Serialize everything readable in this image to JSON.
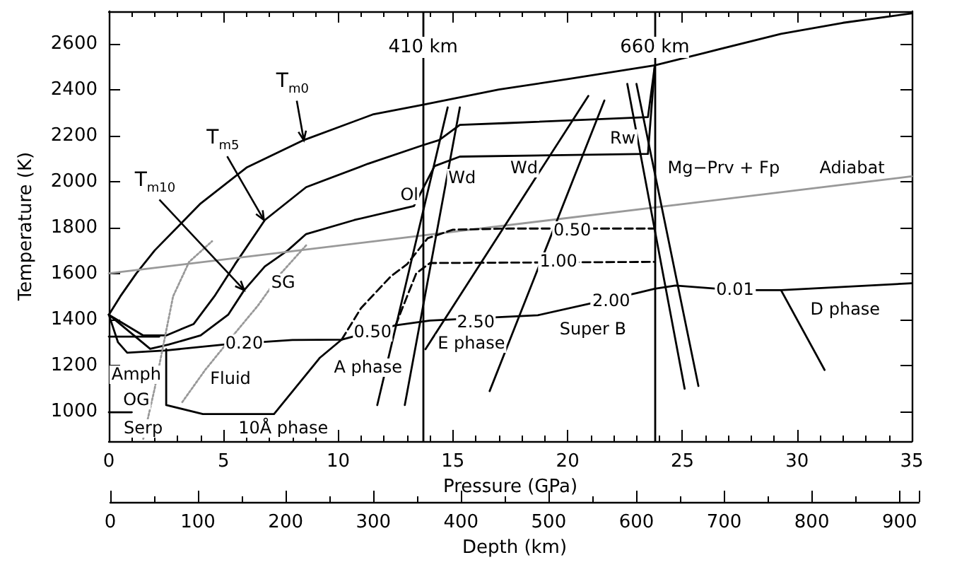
{
  "chart_data": {
    "type": "line",
    "xlabel": "Pressure (GPa)",
    "ylabel": "Temperature (K)",
    "x2label": "Depth (km)",
    "xlim": [
      0,
      35
    ],
    "xticks": [
      0,
      5,
      10,
      15,
      20,
      25,
      30,
      35
    ],
    "ylim": [
      870,
      2740
    ],
    "yticks": [
      1000,
      1200,
      1400,
      1600,
      1800,
      2000,
      2200,
      2400,
      2600
    ],
    "x2lim": [
      0,
      922
    ],
    "x2ticks": [
      0,
      100,
      200,
      300,
      400,
      500,
      600,
      700,
      800,
      900
    ],
    "grid": false,
    "marker": "none",
    "series": [
      {
        "color": "#000000",
        "x": [
          0,
          0.5,
          1.2,
          2,
          4,
          6,
          8.5,
          11.5,
          13.7,
          17,
          20,
          23.8,
          26,
          29.3,
          32,
          35
        ],
        "values": [
          1420,
          1500,
          1600,
          1700,
          1904,
          2060,
          2180,
          2291,
          2334,
          2400,
          2445,
          2505,
          2560,
          2642,
          2690,
          2731
        ]
      },
      {
        "color": "#000000",
        "x": [
          0,
          1.5,
          2.5,
          3.7,
          4.6,
          5.5,
          6.8,
          8.6,
          11.3,
          13.7,
          14.4,
          15.3,
          17.4,
          23.5,
          23.8
        ],
        "values": [
          1420,
          1330,
          1330,
          1380,
          1500,
          1640,
          1832,
          1975,
          2077,
          2158,
          2180,
          2246,
          2254,
          2280,
          2505
        ]
      },
      {
        "color": "#000000",
        "x": [
          0,
          1.8,
          2.6,
          4,
          5.2,
          5.9,
          6.8,
          7.8,
          8.6,
          10.7,
          13.3,
          14.2,
          15.3,
          23.5,
          23.8
        ],
        "values": [
          1420,
          1272,
          1290,
          1330,
          1420,
          1527,
          1630,
          1700,
          1771,
          1832,
          1893,
          2067,
          2108,
          2120,
          2505
        ]
      },
      {
        "color": "#999999",
        "x": [
          0,
          35
        ],
        "values": [
          1600,
          2022
        ]
      },
      {
        "color": "#000000",
        "line_style": "dashed",
        "x": [
          10.15,
          11,
          12.3,
          13,
          13.9,
          15,
          17.4,
          23.8
        ],
        "values": [
          1312,
          1450,
          1588,
          1640,
          1753,
          1790,
          1795,
          1795
        ]
      },
      {
        "color": "#000000",
        "line_style": "dashed",
        "x": [
          12.5,
          13,
          13.4,
          14,
          23.8
        ],
        "values": [
          1374,
          1500,
          1600,
          1645,
          1650
        ]
      },
      {
        "color": "#000000",
        "x": [
          0,
          0.4,
          0.8,
          2.5,
          5,
          8,
          10.15,
          12.5,
          14,
          18.7,
          23,
          23.8,
          24.7,
          27.3,
          29.3,
          35
        ],
        "values": [
          1420,
          1300,
          1255,
          1265,
          1290,
          1310,
          1312,
          1374,
          1395,
          1418,
          1514,
          1533,
          1547,
          1527,
          1527,
          1557
        ]
      },
      {
        "color": "#000000",
        "x": [
          0,
          2.2
        ],
        "values": [
          1325,
          1325
        ]
      },
      {
        "color": "#000000",
        "x": [
          2.5,
          2.5,
          4.1,
          7.2,
          9.2,
          10.15
        ],
        "values": [
          1270,
          1027,
          988,
          988,
          1233,
          1312
        ]
      },
      {
        "color": "#000000",
        "x": [
          0,
          1
        ],
        "values": [
          996,
          996
        ]
      },
      {
        "color": "#999999",
        "line_style": "dotted",
        "x": [
          1.5,
          2,
          2.4,
          2.8,
          3.5,
          4.5
        ],
        "values": [
          880,
          1100,
          1300,
          1500,
          1650,
          1740
        ]
      },
      {
        "color": "#999999",
        "line_style": "dotted",
        "x": [
          3.2,
          4.2,
          5.5,
          6.5,
          7.5,
          8.6
        ],
        "values": [
          1040,
          1180,
          1340,
          1460,
          1600,
          1722
        ]
      },
      {
        "color": "#000000",
        "x": [
          14.77,
          11.7
        ],
        "values": [
          2322,
          1027
        ]
      },
      {
        "color": "#000000",
        "x": [
          15.3,
          12.9
        ],
        "values": [
          2322,
          1027
        ]
      },
      {
        "color": "#000000",
        "x": [
          20.9,
          13.8
        ],
        "values": [
          2372,
          1270
        ]
      },
      {
        "color": "#000000",
        "x": [
          21.6,
          16.6
        ],
        "values": [
          2352,
          1088
        ]
      },
      {
        "color": "#000000",
        "x": [
          22.6,
          25.1
        ],
        "values": [
          2424,
          1098
        ]
      },
      {
        "color": "#000000",
        "x": [
          23,
          25.7
        ],
        "values": [
          2424,
          1110
        ]
      },
      {
        "color": "#000000",
        "x": [
          29.3,
          31.2
        ],
        "values": [
          1527,
          1180
        ]
      }
    ],
    "ref_lines": [
      {
        "axis": "x",
        "value": 13.7,
        "label": "410 km",
        "color": "#000000"
      },
      {
        "axis": "x",
        "value": 23.8,
        "label": "660 km",
        "color": "#000000"
      }
    ],
    "annotations": [
      {
        "text": "T$_{m0}$",
        "x": 8.5,
        "y": 2179
      },
      {
        "text": "T$_{m5}$",
        "x": 6.76,
        "y": 1832
      },
      {
        "text": "T$_{m10}$",
        "x": 5.9,
        "y": 1527
      },
      "Mg−Prv + Fp",
      "Adiabat",
      "10Å phase",
      "A phase",
      "E phase",
      "Super B",
      "D phase",
      {
        "text": "Ol",
        "x": 13.1,
        "y": 1943
      },
      {
        "text": "Wd",
        "x": 15.4,
        "y": 2016
      },
      {
        "text": "Wd",
        "x": 18.1,
        "y": 2058
      },
      {
        "text": "Rw",
        "x": 22.4,
        "y": 2189
      },
      {
        "text": "SG",
        "x": 7.6,
        "y": 1557
      },
      {
        "text": "0.50",
        "x": 20.2,
        "y": 1785
      },
      {
        "text": "1.00",
        "x": 19.6,
        "y": 1649
      },
      {
        "text": "0.20",
        "x": 5.9,
        "y": 1294
      },
      {
        "text": "0.50",
        "x": 11.5,
        "y": 1343
      },
      {
        "text": "2.50",
        "x": 16,
        "y": 1386
      },
      {
        "text": "2.00",
        "x": 21.9,
        "y": 1480
      },
      {
        "text": "0.01",
        "x": 27.3,
        "y": 1527
      },
      {
        "text": "Amph",
        "x": 1.2,
        "y": 1160
      },
      {
        "text": "Fluid",
        "x": 5.3,
        "y": 1141
      },
      {
        "text": "OG",
        "x": 1.2,
        "y": 1050
      },
      {
        "text": "Serp",
        "x": 1.5,
        "y": 927
      }
    ]
  }
}
